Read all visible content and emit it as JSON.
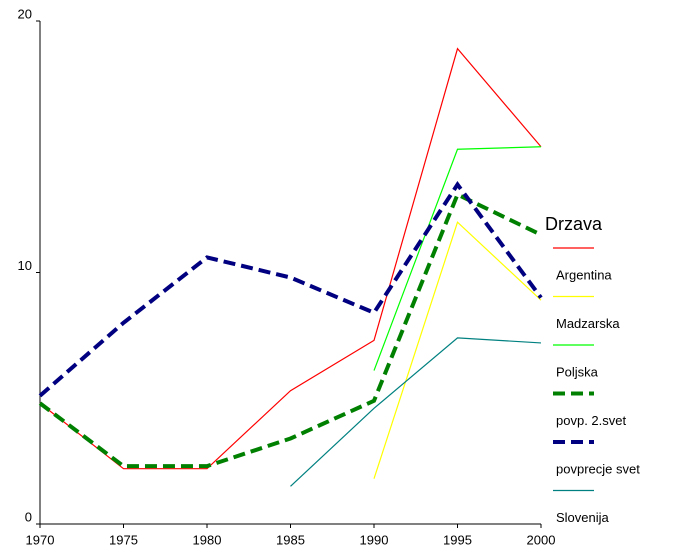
{
  "chart_data": {
    "type": "line",
    "x": [
      1970,
      1975,
      1980,
      1985,
      1990,
      1995,
      2000
    ],
    "xlim": [
      1970,
      2000
    ],
    "xticks": [
      1970,
      1975,
      1980,
      1985,
      1990,
      1995,
      2000
    ],
    "ylim": [
      0,
      20
    ],
    "yticks": [
      0,
      10,
      20
    ],
    "legend_title": "Drzava",
    "series": [
      {
        "name": "Argentina",
        "color": "#ff0000",
        "dashed": false,
        "values": [
          4.8,
          2.2,
          2.2,
          5.3,
          7.3,
          18.9,
          15.0
        ]
      },
      {
        "name": "Madzarska",
        "color": "#ffff00",
        "dashed": false,
        "values": [
          null,
          null,
          null,
          null,
          1.8,
          12.0,
          8.9
        ]
      },
      {
        "name": "Poljska",
        "color": "#00ff00",
        "dashed": false,
        "values": [
          null,
          null,
          null,
          null,
          6.1,
          14.9,
          15.0
        ]
      },
      {
        "name": "povp. 2.svet",
        "color": "#008000",
        "dashed": true,
        "values": [
          4.8,
          2.3,
          2.3,
          3.4,
          4.9,
          13.1,
          11.5
        ]
      },
      {
        "name": "povprecje svet",
        "color": "#000080",
        "dashed": true,
        "values": [
          5.1,
          8.0,
          10.6,
          9.8,
          8.4,
          13.5,
          9.0
        ]
      },
      {
        "name": "Slovenija",
        "color": "#008080",
        "dashed": false,
        "values": [
          null,
          null,
          null,
          1.5,
          4.6,
          7.4,
          7.2
        ]
      }
    ]
  }
}
